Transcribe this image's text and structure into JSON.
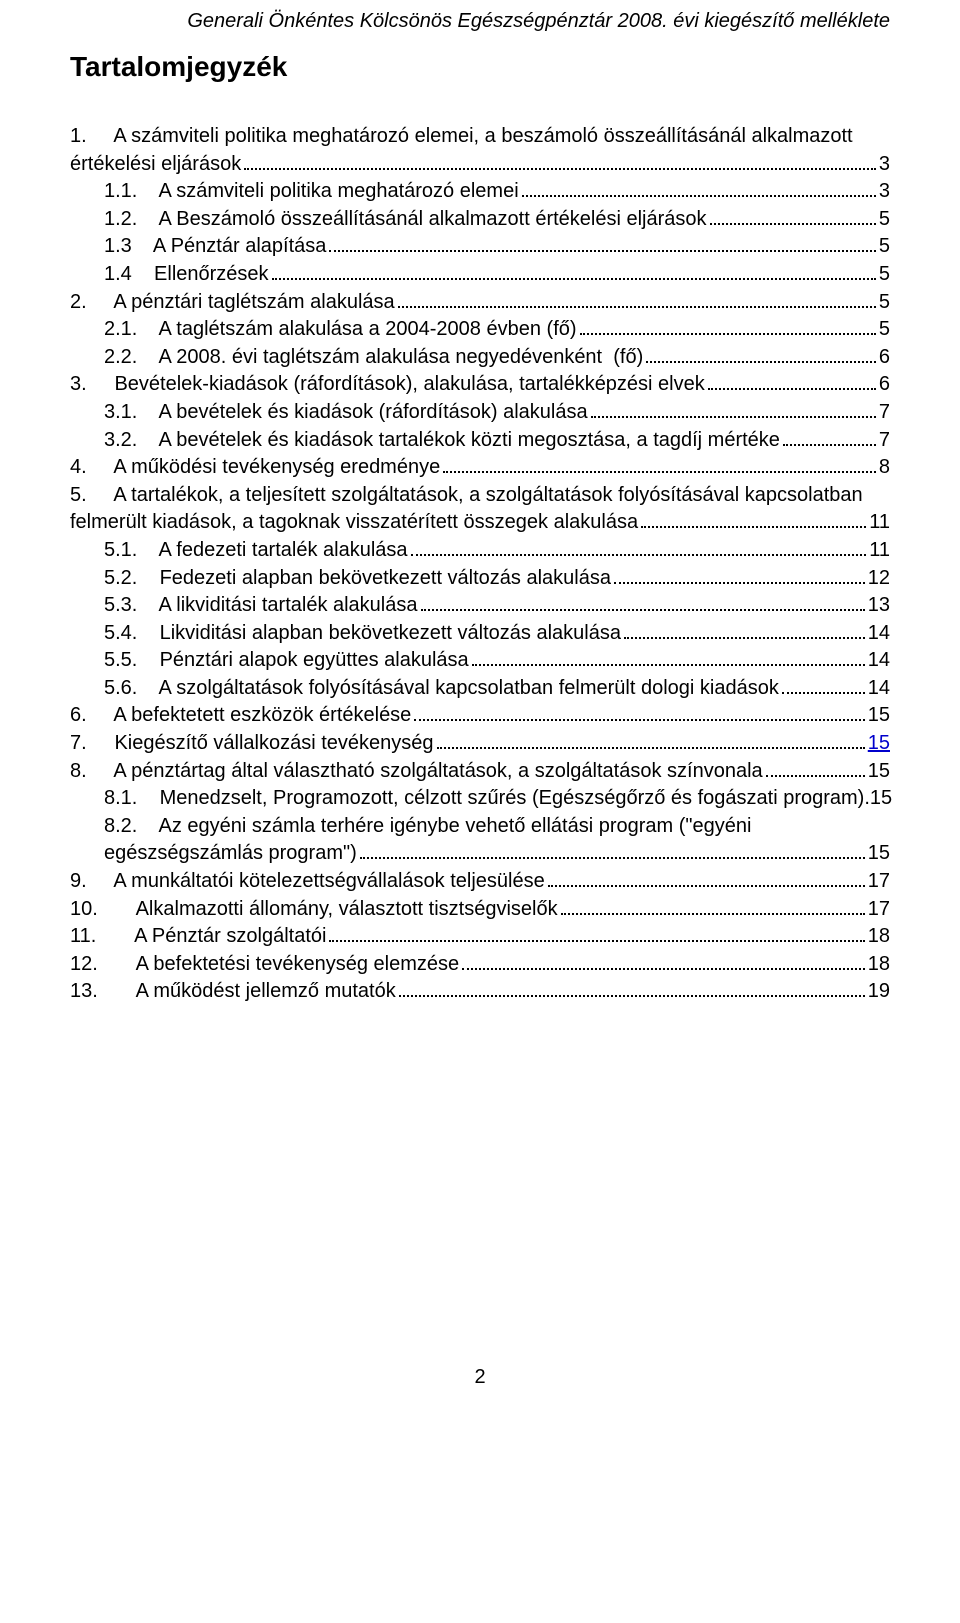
{
  "header": "Generali Önkéntes Kölcsönös Egészségpénztár 2008. évi kiegészítő melléklete",
  "title": "Tartalomjegyzék",
  "entries": [
    {
      "indent": 0,
      "multiline": true,
      "label_a": "1.     A számviteli politika meghatározó elemei, a beszámoló összeállításánál alkalmazott",
      "label_b": "értékelési eljárások",
      "page": "3"
    },
    {
      "indent": 1,
      "label": "1.1.    A számviteli politika meghatározó elemei",
      "page": "3"
    },
    {
      "indent": 1,
      "label": "1.2.    A Beszámoló összeállításánál alkalmazott értékelési eljárások",
      "page": "5"
    },
    {
      "indent": 1,
      "label": "1.3    A Pénztár alapítása",
      "page": "5"
    },
    {
      "indent": 1,
      "label": "1.4    Ellenőrzések",
      "page": "5"
    },
    {
      "indent": 0,
      "label": "2.     A pénztári taglétszám alakulása",
      "page": "5"
    },
    {
      "indent": 1,
      "label": "2.1.    A taglétszám alakulása a 2004-2008 évben (fő)",
      "page": "5"
    },
    {
      "indent": 1,
      "label": "2.2.    A 2008. évi taglétszám alakulása negyedévenként  (fő)",
      "page": "6"
    },
    {
      "indent": 0,
      "label": "3.     Bevételek-kiadások (ráfordítások), alakulása, tartalékképzési elvek",
      "page": "6"
    },
    {
      "indent": 1,
      "label": "3.1.    A bevételek és kiadások (ráfordítások) alakulása",
      "page": "7"
    },
    {
      "indent": 1,
      "label": "3.2.    A bevételek és kiadások tartalékok közti megosztása, a tagdíj mértéke",
      "page": "7"
    },
    {
      "indent": 0,
      "label": "4.     A működési tevékenység eredménye",
      "page": "8"
    },
    {
      "indent": 0,
      "multiline": true,
      "label_a": "5.     A tartalékok, a teljesített szolgáltatások, a szolgáltatások folyósításával kapcsolatban",
      "label_b": "felmerült kiadások, a tagoknak visszatérített összegek alakulása",
      "page": "11"
    },
    {
      "indent": 1,
      "label": "5.1.    A fedezeti tartalék alakulása",
      "page": "11"
    },
    {
      "indent": 1,
      "label": "5.2.    Fedezeti alapban bekövetkezett változás alakulása",
      "page": "12"
    },
    {
      "indent": 1,
      "label": "5.3.    A likviditási tartalék alakulása",
      "page": "13"
    },
    {
      "indent": 1,
      "label": "5.4.    Likviditási alapban bekövetkezett változás alakulása",
      "page": "14"
    },
    {
      "indent": 1,
      "label": "5.5.    Pénztári alapok együttes alakulása",
      "page": "14"
    },
    {
      "indent": 1,
      "label": "5.6.    A szolgáltatások folyósításával kapcsolatban felmerült dologi kiadások",
      "page": "14"
    },
    {
      "indent": 0,
      "label": "6.     A befektetett eszközök értékelése",
      "page": "15"
    },
    {
      "indent": 0,
      "label": "7.     Kiegészítő vállalkozási tevékenység",
      "page": "15",
      "link": true
    },
    {
      "indent": 0,
      "label": "8.     A pénztártag által választható szolgáltatások, a szolgáltatások színvonala",
      "page": "15"
    },
    {
      "indent": 1,
      "label": "8.1.    Menedzselt, Programozott, célzott szűrés (Egészségőrző és fogászati program).",
      "page": "15",
      "nodots": true
    },
    {
      "indent": 1,
      "multiline": true,
      "label_a": "8.2.    Az egyéni számla terhére igénybe vehető ellátási program (\"egyéni",
      "label_b": "egészségszámlás program\")",
      "page": "15"
    },
    {
      "indent": 0,
      "label": "9.     A munkáltatói kötelezettségvállalások teljesülése",
      "page": "17"
    },
    {
      "indent": 0,
      "label": "10.       Alkalmazotti állomány, választott tisztségviselők",
      "page": "17"
    },
    {
      "indent": 0,
      "label": "11.       A Pénztár szolgáltatói",
      "page": "18"
    },
    {
      "indent": 0,
      "label": "12.       A befektetési tevékenység elemzése",
      "page": "18"
    },
    {
      "indent": 0,
      "label": "13.       A működést jellemző mutatók",
      "page": "19"
    }
  ],
  "footer_page": "2"
}
